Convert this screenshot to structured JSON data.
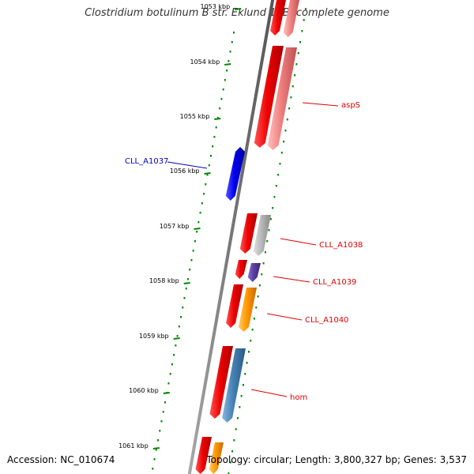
{
  "title": "Clostridium botulinum B str. Eklund 17B, complete genome",
  "footer": {
    "accession": "Accession: NC_010674",
    "topology": "Topology: circular; Length: 3,800,327 bp; Genes: 3,537"
  },
  "scale_ticks": [
    "1053 kbp",
    "1054 kbp",
    "1055 kbp",
    "1056 kbp",
    "1057 kbp",
    "1058 kbp",
    "1059 kbp",
    "1060 kbp",
    "1061 kbp"
  ],
  "gene_labels": [
    {
      "text": "aspS",
      "color": "#e00000"
    },
    {
      "text": "CLL_A1037",
      "color": "#0000c0"
    },
    {
      "text": "CLL_A1038",
      "color": "#e00000"
    },
    {
      "text": "CLL_A1039",
      "color": "#e00000"
    },
    {
      "text": "CLL_A1040",
      "color": "#e00000"
    },
    {
      "text": "hom",
      "color": "#e00000"
    }
  ],
  "colors": {
    "cds": "#ee0000",
    "rna_blue": "#0000ee",
    "feature_pink": "#f08080",
    "feature_gray": "#b8b8b8",
    "feature_purple": "#5a3fa0",
    "feature_orange": "#ff9900",
    "feature_steel": "#4682b4",
    "backbone": "#808080",
    "tick_green": "#008800"
  }
}
